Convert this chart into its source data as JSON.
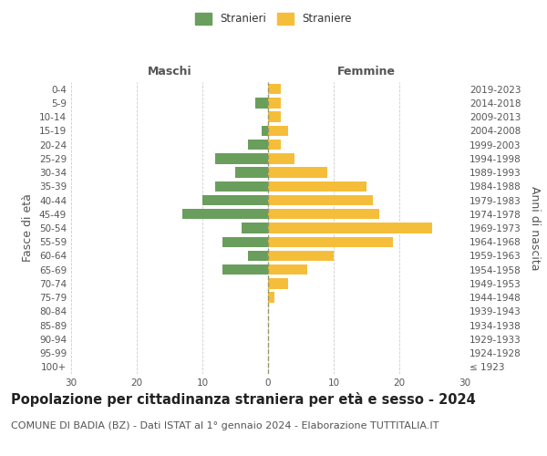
{
  "age_groups": [
    "100+",
    "95-99",
    "90-94",
    "85-89",
    "80-84",
    "75-79",
    "70-74",
    "65-69",
    "60-64",
    "55-59",
    "50-54",
    "45-49",
    "40-44",
    "35-39",
    "30-34",
    "25-29",
    "20-24",
    "15-19",
    "10-14",
    "5-9",
    "0-4"
  ],
  "birth_years": [
    "≤ 1923",
    "1924-1928",
    "1929-1933",
    "1934-1938",
    "1939-1943",
    "1944-1948",
    "1949-1953",
    "1954-1958",
    "1959-1963",
    "1964-1968",
    "1969-1973",
    "1974-1978",
    "1979-1983",
    "1984-1988",
    "1989-1993",
    "1994-1998",
    "1999-2003",
    "2004-2008",
    "2009-2013",
    "2014-2018",
    "2019-2023"
  ],
  "males": [
    0,
    0,
    0,
    0,
    0,
    0,
    0,
    7,
    3,
    7,
    4,
    13,
    10,
    8,
    5,
    8,
    3,
    1,
    0,
    2,
    0
  ],
  "females": [
    0,
    0,
    0,
    0,
    0,
    1,
    3,
    6,
    10,
    19,
    25,
    17,
    16,
    15,
    9,
    4,
    2,
    3,
    2,
    2,
    2
  ],
  "male_color": "#6a9e5c",
  "female_color": "#f5be3a",
  "bar_height": 0.75,
  "xlim": 30,
  "title": "Popolazione per cittadinanza straniera per età e sesso - 2024",
  "subtitle": "COMUNE DI BADIA (BZ) - Dati ISTAT al 1° gennaio 2024 - Elaborazione TUTTITALIA.IT",
  "ylabel_left": "Fasce di età",
  "ylabel_right": "Anni di nascita",
  "xlabel_left": "Maschi",
  "xlabel_top_right": "Femmine",
  "legend_male": "Stranieri",
  "legend_female": "Straniere",
  "background_color": "#ffffff",
  "grid_color": "#cccccc",
  "title_fontsize": 10.5,
  "subtitle_fontsize": 8,
  "tick_fontsize": 7.5,
  "label_fontsize": 9
}
